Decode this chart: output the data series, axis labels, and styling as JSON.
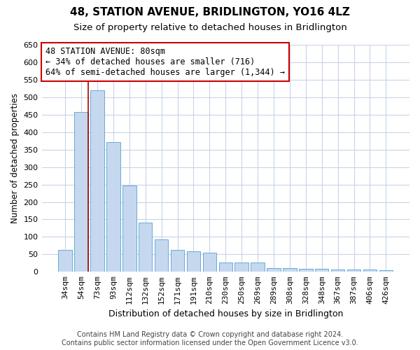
{
  "title": "48, STATION AVENUE, BRIDLINGTON, YO16 4LZ",
  "subtitle": "Size of property relative to detached houses in Bridlington",
  "xlabel": "Distribution of detached houses by size in Bridlington",
  "ylabel": "Number of detached properties",
  "categories": [
    "34sqm",
    "54sqm",
    "73sqm",
    "93sqm",
    "112sqm",
    "132sqm",
    "152sqm",
    "171sqm",
    "191sqm",
    "210sqm",
    "230sqm",
    "250sqm",
    "269sqm",
    "289sqm",
    "308sqm",
    "328sqm",
    "348sqm",
    "367sqm",
    "387sqm",
    "406sqm",
    "426sqm"
  ],
  "values": [
    63,
    457,
    520,
    372,
    248,
    140,
    93,
    63,
    58,
    55,
    27,
    26,
    26,
    11,
    11,
    9,
    8,
    6,
    7,
    6,
    5
  ],
  "bar_color": "#c5d8ef",
  "bar_edge_color": "#6aaad4",
  "highlight_line_color": "#aa0000",
  "annotation_text": "48 STATION AVENUE: 80sqm\n← 34% of detached houses are smaller (716)\n64% of semi-detached houses are larger (1,344) →",
  "annotation_box_color": "#ffffff",
  "annotation_border_color": "#cc0000",
  "ylim": [
    0,
    650
  ],
  "yticks": [
    0,
    50,
    100,
    150,
    200,
    250,
    300,
    350,
    400,
    450,
    500,
    550,
    600,
    650
  ],
  "background_color": "#ffffff",
  "grid_color": "#c8d4e8",
  "footer": "Contains HM Land Registry data © Crown copyright and database right 2024.\nContains public sector information licensed under the Open Government Licence v3.0.",
  "title_fontsize": 11,
  "subtitle_fontsize": 9.5,
  "xlabel_fontsize": 9,
  "ylabel_fontsize": 8.5,
  "tick_fontsize": 8,
  "footer_fontsize": 7,
  "ann_fontsize": 8.5
}
